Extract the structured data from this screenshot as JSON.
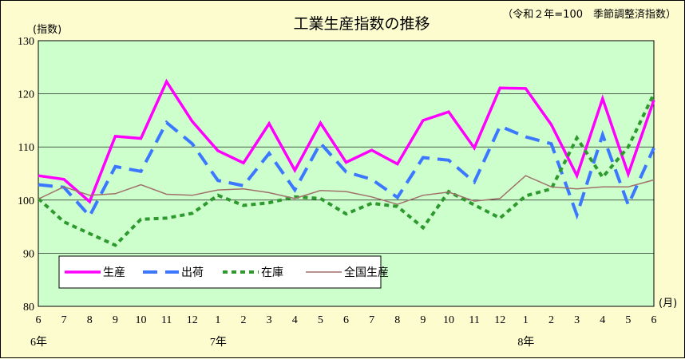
{
  "chart_data": {
    "type": "line",
    "title": "工業生産指数の推移",
    "subtitle": "（令和２年=100　季節調整済指数）",
    "ylabel": "(指数)",
    "xunit": "(月)",
    "ylim": [
      80,
      130
    ],
    "yticks": [
      80,
      90,
      100,
      110,
      120,
      130
    ],
    "categories": [
      "6",
      "7",
      "8",
      "9",
      "10",
      "11",
      "12",
      "1",
      "2",
      "3",
      "4",
      "5",
      "6",
      "7",
      "8",
      "9",
      "10",
      "11",
      "12",
      "1",
      "2",
      "3",
      "4",
      "5",
      "6"
    ],
    "year_labels": [
      {
        "index": 0,
        "label": "6年"
      },
      {
        "index": 7,
        "label": "7年"
      },
      {
        "index": 19,
        "label": "8年"
      }
    ],
    "grid": true,
    "legend_position": "bottom-left",
    "series": [
      {
        "name": "生産",
        "color": "#ff00ff",
        "style": "solid",
        "values": [
          104.6,
          103.9,
          99.7,
          112.0,
          111.6,
          122.3,
          114.8,
          109.3,
          107.0,
          114.4,
          105.6,
          114.5,
          107.1,
          109.4,
          106.8,
          115.0,
          116.6,
          109.8,
          121.1,
          121.0,
          114.2,
          104.6,
          119.1,
          104.9,
          118.8
        ]
      },
      {
        "name": "出荷",
        "color": "#3c78ff",
        "style": "dashed",
        "values": [
          102.9,
          102.4,
          97.0,
          106.3,
          105.4,
          114.6,
          110.6,
          103.7,
          102.7,
          108.8,
          101.9,
          110.7,
          105.3,
          103.9,
          100.5,
          108.0,
          107.5,
          103.4,
          113.9,
          111.9,
          110.6,
          97.2,
          112.3,
          99.1,
          109.8
        ]
      },
      {
        "name": "在庫",
        "color": "#2e9a2e",
        "style": "dotted",
        "values": [
          100.3,
          95.9,
          93.7,
          91.5,
          96.4,
          96.6,
          97.5,
          100.9,
          99.0,
          99.5,
          100.6,
          100.3,
          97.4,
          99.4,
          98.8,
          94.8,
          101.6,
          99.1,
          96.6,
          100.8,
          102.1,
          111.7,
          104.3,
          110.0,
          120.0
        ]
      },
      {
        "name": "全国生産",
        "color": "#a0706a",
        "style": "solid-thin",
        "values": [
          100.2,
          102.5,
          100.9,
          101.2,
          102.9,
          101.1,
          100.9,
          101.9,
          102.1,
          101.4,
          100.3,
          101.8,
          101.6,
          100.6,
          99.2,
          100.9,
          101.5,
          99.8,
          100.3,
          104.6,
          102.5,
          102.1,
          102.5,
          102.5,
          103.8
        ]
      }
    ]
  }
}
